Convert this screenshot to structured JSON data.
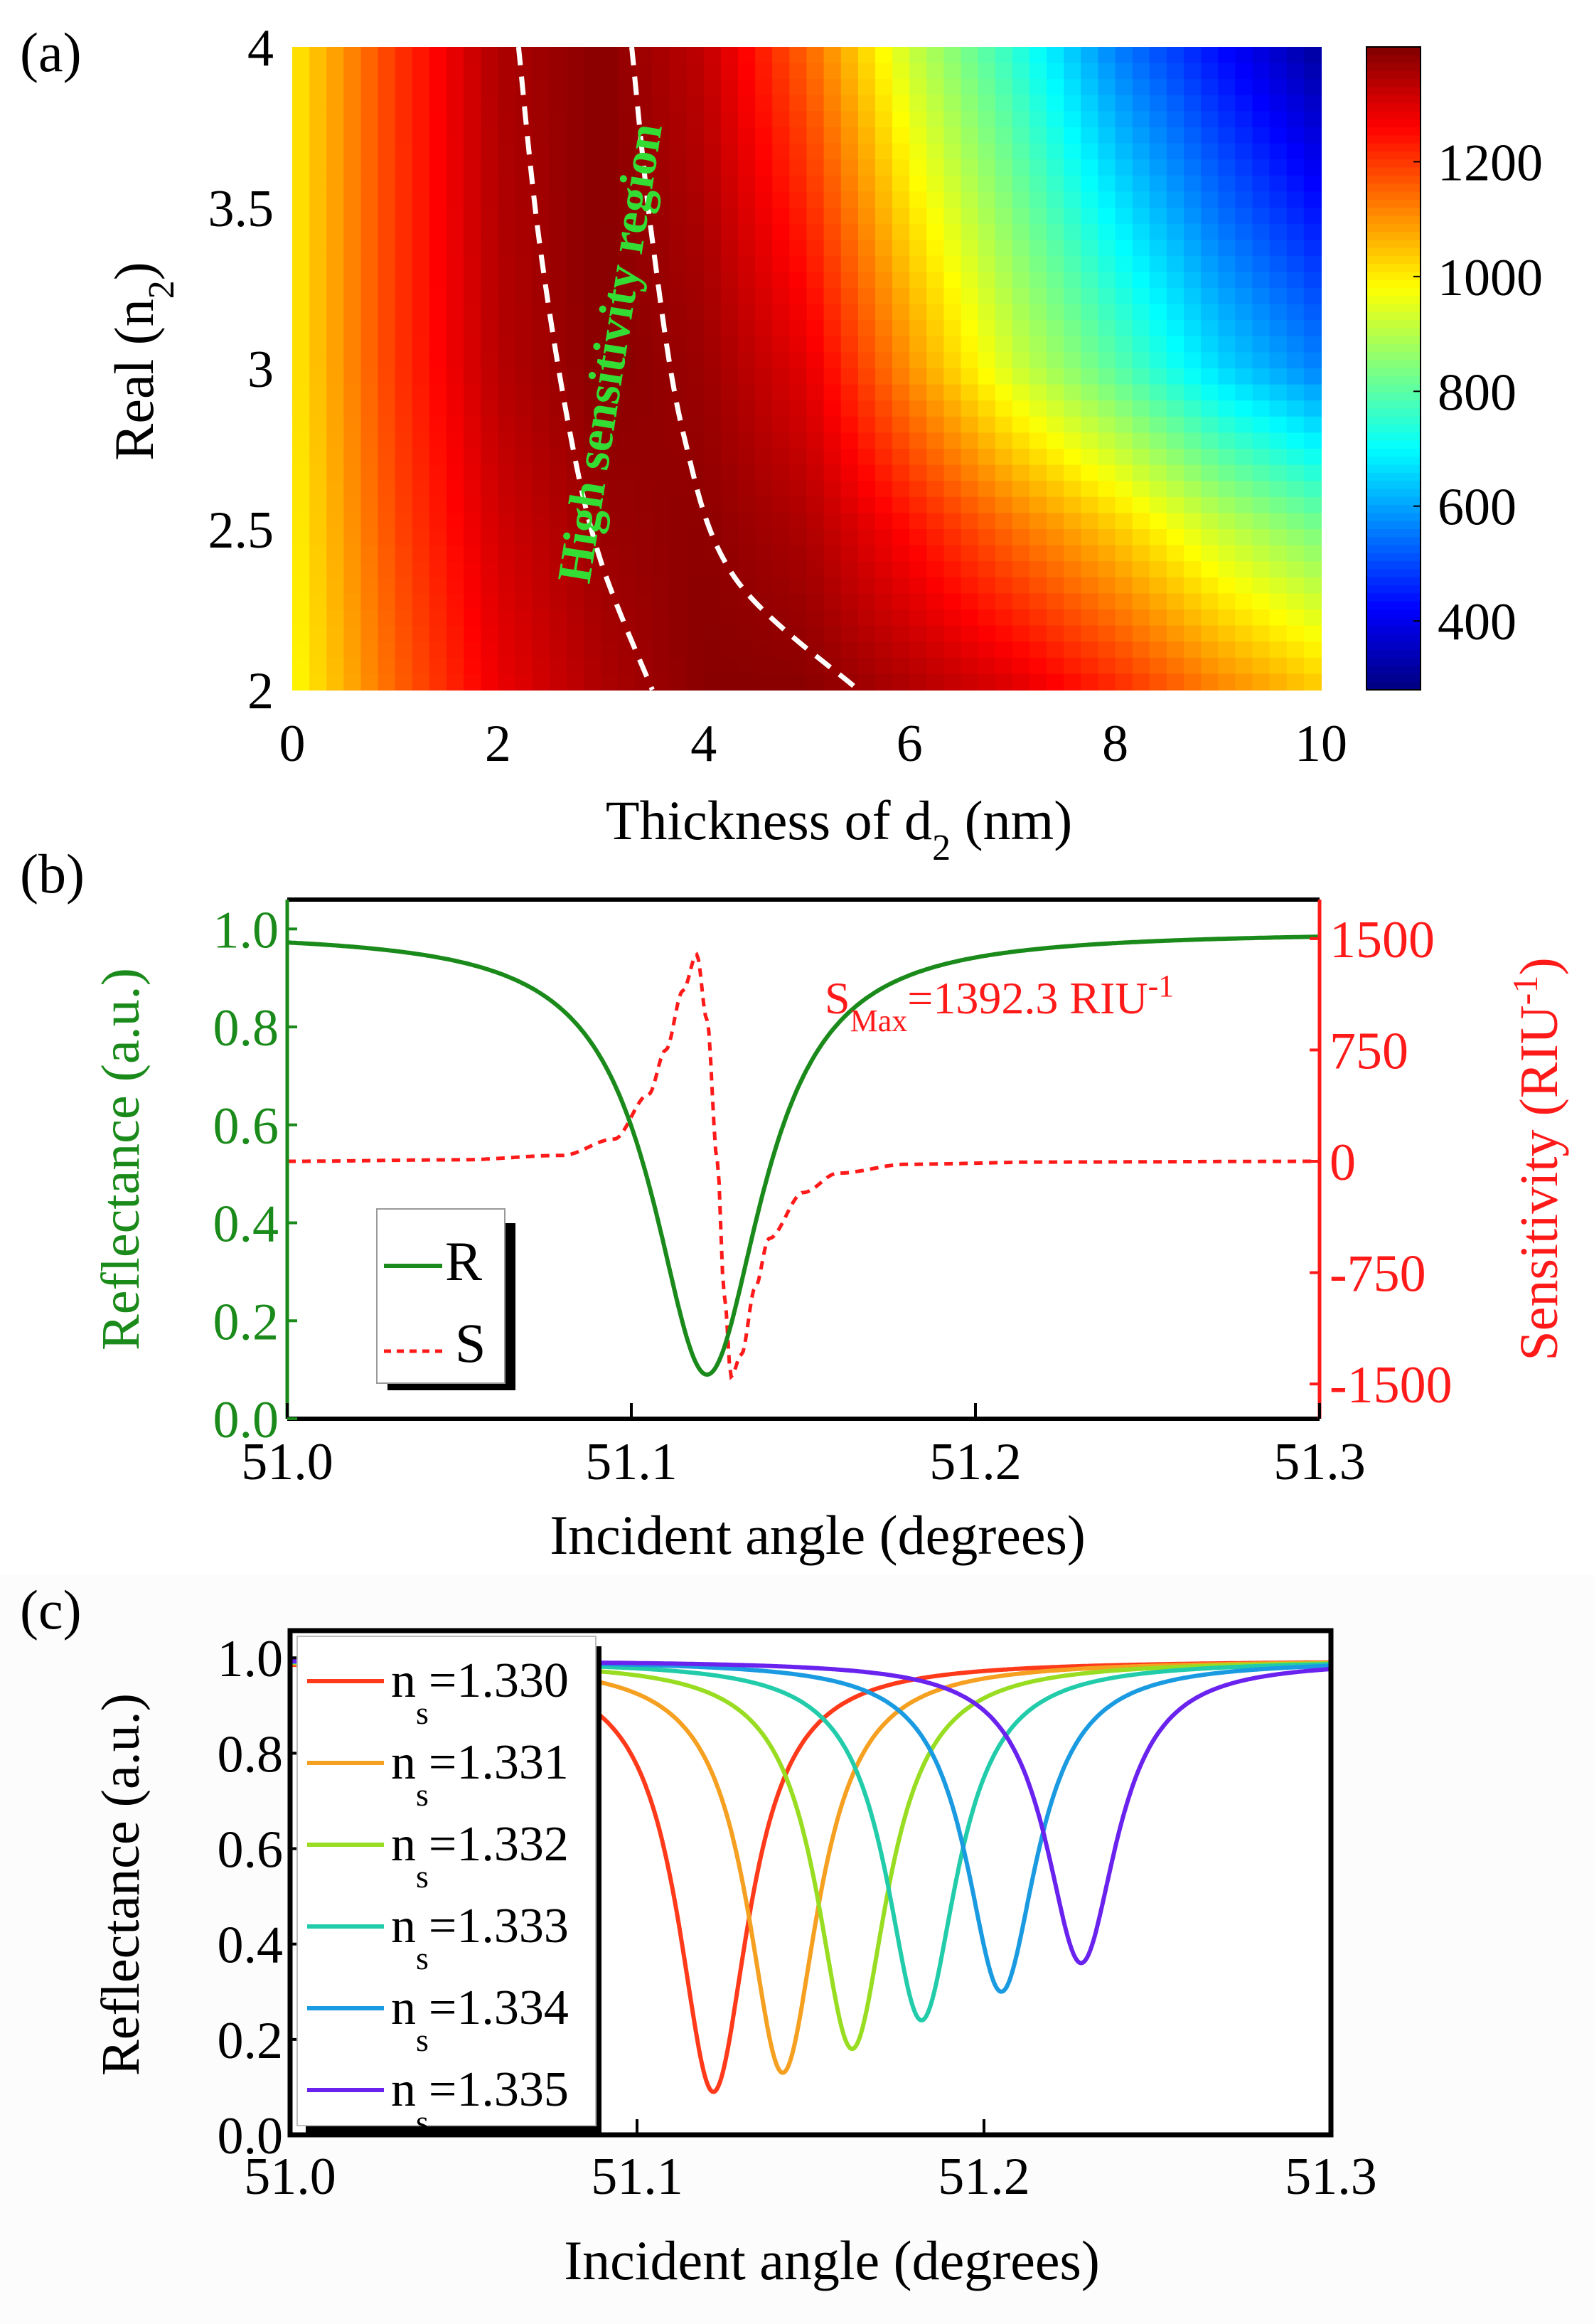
{
  "chart_data": [
    {
      "panel": "(a)",
      "type": "heatmap",
      "xlabel": {
        "main": "Thickness of d",
        "sub": "2",
        "tail": " (nm)"
      },
      "ylabel": {
        "main": "Real (n",
        "sub": "2",
        "tail": ")"
      },
      "xlim": [
        0,
        10
      ],
      "ylim": [
        2,
        4
      ],
      "xticks": [
        "0",
        "2",
        "4",
        "6",
        "8",
        "10"
      ],
      "yticks": [
        "2",
        "2.5",
        "3",
        "3.5",
        "4"
      ],
      "colorbar": {
        "range": [
          280,
          1400
        ],
        "ticks": [
          "400",
          "600",
          "800",
          "1000",
          "1200"
        ],
        "colormap": "jet"
      },
      "grid_x": [
        0,
        1,
        2,
        3,
        4,
        5,
        6,
        7,
        8,
        9,
        10
      ],
      "grid_y": [
        2,
        2.5,
        3,
        3.5,
        4
      ],
      "values": [
        [
          980,
          1150,
          1280,
          1350,
          1390,
          1390,
          1350,
          1300,
          1220,
          1120,
          1040
        ],
        [
          990,
          1180,
          1310,
          1370,
          1385,
          1350,
          1250,
          1140,
          1040,
          920,
          830
        ],
        [
          1000,
          1200,
          1340,
          1390,
          1370,
          1290,
          1100,
          930,
          800,
          660,
          560
        ],
        [
          1000,
          1200,
          1345,
          1390,
          1350,
          1220,
          1010,
          840,
          680,
          540,
          430
        ],
        [
          1000,
          1200,
          1350,
          1390,
          1330,
          1150,
          920,
          750,
          560,
          430,
          310
        ]
      ],
      "annotation": {
        "text": "High sensitivity region",
        "color": "#33dd33"
      },
      "region_boundaries": [
        [
          [
            2.2,
            4
          ],
          [
            2.4,
            3.4
          ],
          [
            2.7,
            2.8
          ],
          [
            3.0,
            2.4
          ],
          [
            3.5,
            2
          ]
        ],
        [
          [
            3.3,
            4
          ],
          [
            3.5,
            3.4
          ],
          [
            3.8,
            2.8
          ],
          [
            4.3,
            2.35
          ],
          [
            5.5,
            2
          ]
        ]
      ]
    },
    {
      "panel": "(b)",
      "type": "line",
      "xlabel": "Incident angle (degrees)",
      "ylabel_left": "Reflectance (a.u.)",
      "ylabel_right": {
        "main": "Sensitivity (RIU",
        "sup": "-1",
        "tail": ")"
      },
      "xlim": [
        51.0,
        51.3
      ],
      "ylim_left": [
        0,
        1.06
      ],
      "ylim_right": [
        -1734,
        1763
      ],
      "xticks": [
        "51.0",
        "51.1",
        "51.2",
        "51.3"
      ],
      "xtick_values": [
        51.0,
        51.1,
        51.2,
        51.3
      ],
      "yticks_left": [
        "0.0",
        "0.2",
        "0.4",
        "0.6",
        "0.8",
        "1.0"
      ],
      "yticks_right": [
        "-1500",
        "-750",
        "0",
        "750",
        "1500"
      ],
      "ytick_right_values": [
        -1500,
        -750,
        0,
        750,
        1500
      ],
      "series": [
        {
          "name": "R",
          "color": "#1a8a1a",
          "style": "solid",
          "axis": "left",
          "center": 51.122,
          "min": 0.09,
          "gamma": 0.0195,
          "baseline": 0.995
        },
        {
          "name": "S",
          "color": "#ff1a1a",
          "style": "dashed",
          "axis": "right",
          "x": [
            51.0,
            51.05,
            51.08,
            51.095,
            51.105,
            51.11,
            51.115,
            51.119,
            51.122,
            51.125,
            51.127,
            51.129,
            51.132,
            51.136,
            51.14,
            51.15,
            51.16,
            51.18,
            51.22,
            51.3
          ],
          "y": [
            0,
            10,
            40,
            150,
            450,
            750,
            1150,
            1392,
            950,
            0,
            -900,
            -1450,
            -1300,
            -850,
            -520,
            -210,
            -80,
            -20,
            -5,
            0
          ]
        }
      ],
      "annotation": {
        "main": "S",
        "sub": "Max",
        "mid": "=1392.3 RIU",
        "sup": "-1"
      },
      "left_color": "#1a8a1a",
      "right_color": "#ff1a1a"
    },
    {
      "panel": "(c)",
      "type": "line",
      "xlabel": "Incident angle (degrees)",
      "ylabel": "Reflectance (a.u.)",
      "xlim": [
        51.0,
        51.3
      ],
      "ylim": [
        0,
        1.057
      ],
      "xticks": [
        "51.0",
        "51.1",
        "51.2",
        "51.3"
      ],
      "xtick_values": [
        51.0,
        51.1,
        51.2,
        51.3
      ],
      "yticks": [
        "0.0",
        "0.2",
        "0.4",
        "0.6",
        "0.8",
        "1.0"
      ],
      "legend_prefix": "n",
      "legend_sub": "s",
      "series": [
        {
          "name": "=1.330",
          "color": "#ff3a1a",
          "center": 51.122,
          "min": 0.09,
          "gamma": 0.0125
        },
        {
          "name": "=1.331",
          "color": "#f5a020",
          "center": 51.142,
          "min": 0.13,
          "gamma": 0.0125
        },
        {
          "name": "=1.332",
          "color": "#99dd22",
          "center": 51.162,
          "min": 0.18,
          "gamma": 0.0125
        },
        {
          "name": "=1.333",
          "color": "#22ccaa",
          "center": 51.182,
          "min": 0.24,
          "gamma": 0.0125
        },
        {
          "name": "=1.334",
          "color": "#1a9ae0",
          "center": 51.205,
          "min": 0.3,
          "gamma": 0.0125
        },
        {
          "name": "=1.335",
          "color": "#6a22ee",
          "center": 51.228,
          "min": 0.36,
          "gamma": 0.0125
        }
      ]
    }
  ]
}
